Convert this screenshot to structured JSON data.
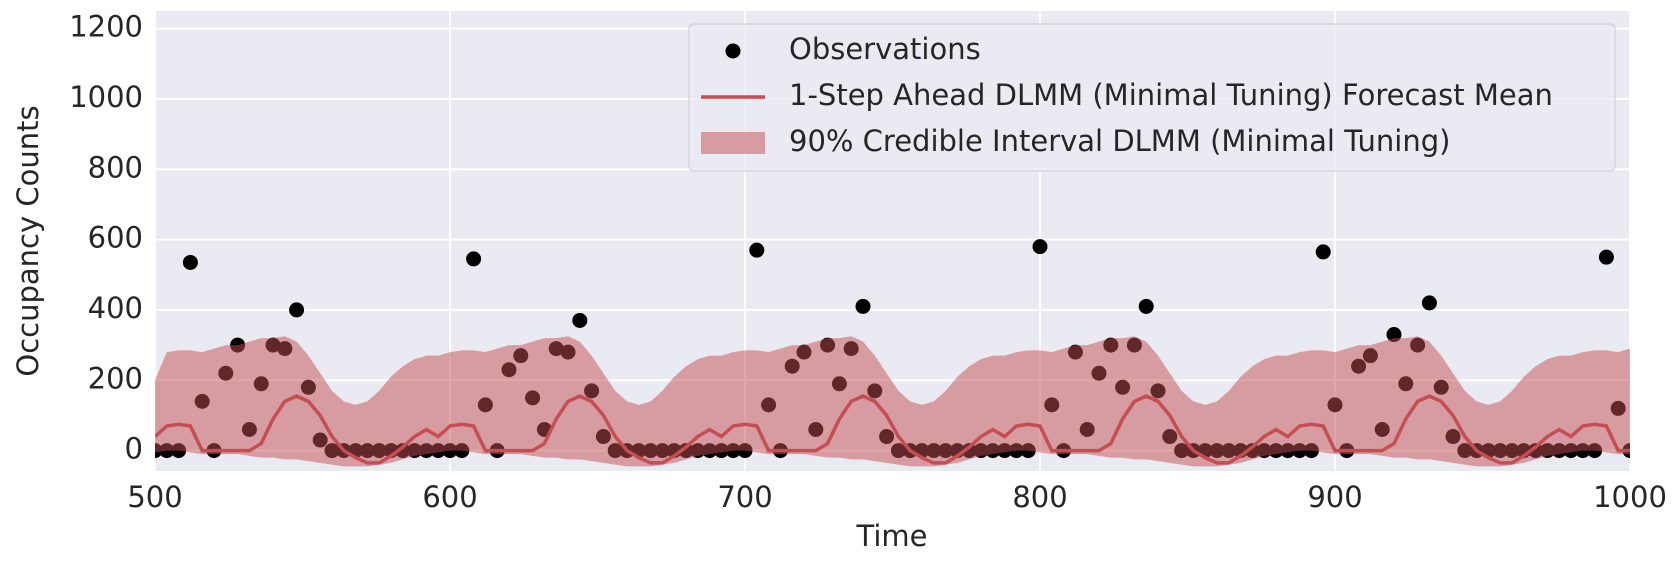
{
  "chart_data": {
    "type": "line",
    "x": [
      500,
      504,
      508,
      512,
      516,
      520,
      524,
      528,
      532,
      536,
      540,
      544,
      548,
      552,
      556,
      560,
      564,
      568,
      572,
      576,
      580,
      584,
      588,
      592,
      596,
      600,
      604,
      608,
      612,
      616,
      620,
      624,
      628,
      632,
      636,
      640,
      644,
      648,
      652,
      656,
      660,
      664,
      668,
      672,
      676,
      680,
      684,
      688,
      692,
      696,
      700,
      704,
      708,
      712,
      716,
      720,
      724,
      728,
      732,
      736,
      740,
      744,
      748,
      752,
      756,
      760,
      764,
      768,
      772,
      776,
      780,
      784,
      788,
      792,
      796,
      800,
      804,
      808,
      812,
      816,
      820,
      824,
      828,
      832,
      836,
      840,
      844,
      848,
      852,
      856,
      860,
      864,
      868,
      872,
      876,
      880,
      884,
      888,
      892,
      896,
      900,
      904,
      908,
      912,
      916,
      920,
      924,
      928,
      932,
      936,
      940,
      944,
      948,
      952,
      956,
      960,
      964,
      968,
      972,
      976,
      980,
      984,
      988,
      992,
      996,
      1000
    ],
    "xlabel": "Time",
    "ylabel": "Occupancy Counts",
    "xlim": [
      500,
      1000
    ],
    "xticks": [
      500,
      600,
      700,
      800,
      900,
      1000
    ],
    "ylim": [
      -58,
      1250
    ],
    "yticks": [
      0,
      200,
      400,
      600,
      800,
      1000,
      1200
    ],
    "grid": true,
    "legend": "upper right",
    "series": [
      {
        "name": "Observations",
        "type": "scatter",
        "color": "#000000",
        "values": [
          0,
          0,
          0,
          535,
          140,
          0,
          220,
          300,
          60,
          190,
          300,
          290,
          400,
          180,
          30,
          0,
          0,
          0,
          0,
          0,
          0,
          0,
          0,
          0,
          0,
          0,
          0,
          545,
          130,
          0,
          230,
          270,
          150,
          60,
          290,
          280,
          370,
          170,
          40,
          0,
          0,
          0,
          0,
          0,
          0,
          0,
          0,
          0,
          0,
          0,
          0,
          570,
          130,
          0,
          240,
          280,
          60,
          300,
          190,
          290,
          410,
          170,
          40,
          0,
          0,
          0,
          0,
          0,
          0,
          0,
          0,
          0,
          0,
          0,
          0,
          580,
          130,
          0,
          280,
          60,
          220,
          300,
          180,
          300,
          410,
          170,
          40,
          0,
          0,
          0,
          0,
          0,
          0,
          0,
          0,
          0,
          0,
          0,
          0,
          565,
          130,
          0,
          240,
          270,
          60,
          330,
          190,
          300,
          420,
          180,
          40,
          0,
          0,
          0,
          0,
          0,
          0,
          0,
          0,
          0,
          0,
          0,
          0,
          550,
          120,
          0
        ]
      },
      {
        "name": "1-Step Ahead DLMM (Minimal Tuning) Forecast Mean",
        "type": "line",
        "color": "#c44e52",
        "values": [
          40,
          70,
          75,
          70,
          0,
          0,
          0,
          0,
          0,
          20,
          90,
          140,
          155,
          140,
          100,
          40,
          0,
          -20,
          -35,
          -35,
          -15,
          10,
          40,
          60,
          40,
          70,
          75,
          70,
          0,
          0,
          0,
          0,
          0,
          20,
          90,
          140,
          155,
          140,
          100,
          40,
          0,
          -20,
          -35,
          -35,
          -15,
          10,
          40,
          60,
          40,
          70,
          75,
          70,
          0,
          0,
          0,
          0,
          0,
          20,
          90,
          140,
          155,
          140,
          100,
          40,
          0,
          -20,
          -35,
          -35,
          -15,
          10,
          40,
          60,
          40,
          70,
          75,
          70,
          0,
          0,
          0,
          0,
          0,
          20,
          90,
          140,
          155,
          140,
          100,
          40,
          0,
          -20,
          -35,
          -35,
          -15,
          10,
          40,
          60,
          40,
          70,
          75,
          70,
          0,
          0,
          0,
          0,
          0,
          20,
          90,
          140,
          155,
          140,
          100,
          40,
          0,
          -20,
          -35,
          -35,
          -15,
          10,
          40,
          60,
          40,
          70,
          75,
          70,
          0,
          0
        ]
      }
    ],
    "band": {
      "name": "90% Credible Interval DLMM (Minimal Tuning)",
      "color": "#c44e52",
      "upper": [
        200,
        280,
        285,
        285,
        280,
        290,
        300,
        300,
        310,
        320,
        320,
        325,
        310,
        270,
        220,
        170,
        140,
        130,
        140,
        170,
        210,
        240,
        260,
        270,
        270,
        280,
        285,
        285,
        280,
        290,
        300,
        300,
        310,
        320,
        320,
        325,
        310,
        270,
        220,
        170,
        140,
        130,
        140,
        170,
        210,
        240,
        260,
        270,
        270,
        280,
        285,
        285,
        280,
        290,
        300,
        300,
        310,
        320,
        320,
        325,
        310,
        270,
        220,
        170,
        140,
        130,
        140,
        170,
        210,
        240,
        260,
        270,
        270,
        280,
        285,
        285,
        280,
        290,
        300,
        300,
        310,
        320,
        320,
        325,
        310,
        270,
        220,
        170,
        140,
        130,
        140,
        170,
        210,
        240,
        260,
        270,
        270,
        280,
        285,
        285,
        280,
        290,
        300,
        300,
        310,
        320,
        320,
        325,
        310,
        270,
        220,
        170,
        140,
        130,
        140,
        170,
        210,
        240,
        260,
        270,
        270,
        280,
        285,
        285,
        280,
        290
      ],
      "lower": [
        -5,
        0,
        0,
        -5,
        -10,
        -10,
        -10,
        -10,
        -15,
        -20,
        -20,
        -25,
        -25,
        -30,
        -35,
        -40,
        -45,
        -45,
        -45,
        -40,
        -35,
        -25,
        -15,
        -10,
        -5,
        0,
        0,
        -5,
        -10,
        -10,
        -10,
        -10,
        -15,
        -20,
        -20,
        -25,
        -25,
        -30,
        -35,
        -40,
        -45,
        -45,
        -45,
        -40,
        -35,
        -25,
        -15,
        -10,
        -5,
        0,
        0,
        -5,
        -10,
        -10,
        -10,
        -10,
        -15,
        -20,
        -20,
        -25,
        -25,
        -30,
        -35,
        -40,
        -45,
        -45,
        -45,
        -40,
        -35,
        -25,
        -15,
        -10,
        -5,
        0,
        0,
        -5,
        -10,
        -10,
        -10,
        -10,
        -15,
        -20,
        -20,
        -25,
        -25,
        -30,
        -35,
        -40,
        -45,
        -45,
        -45,
        -40,
        -35,
        -25,
        -15,
        -10,
        -5,
        0,
        0,
        -5,
        -10,
        -10,
        -10,
        -10,
        -15,
        -20,
        -20,
        -25,
        -25,
        -30,
        -35,
        -40,
        -45,
        -45,
        -45,
        -40,
        -35,
        -25,
        -15,
        -10,
        -5,
        0,
        0,
        -5,
        -10,
        -10
      ]
    }
  }
}
